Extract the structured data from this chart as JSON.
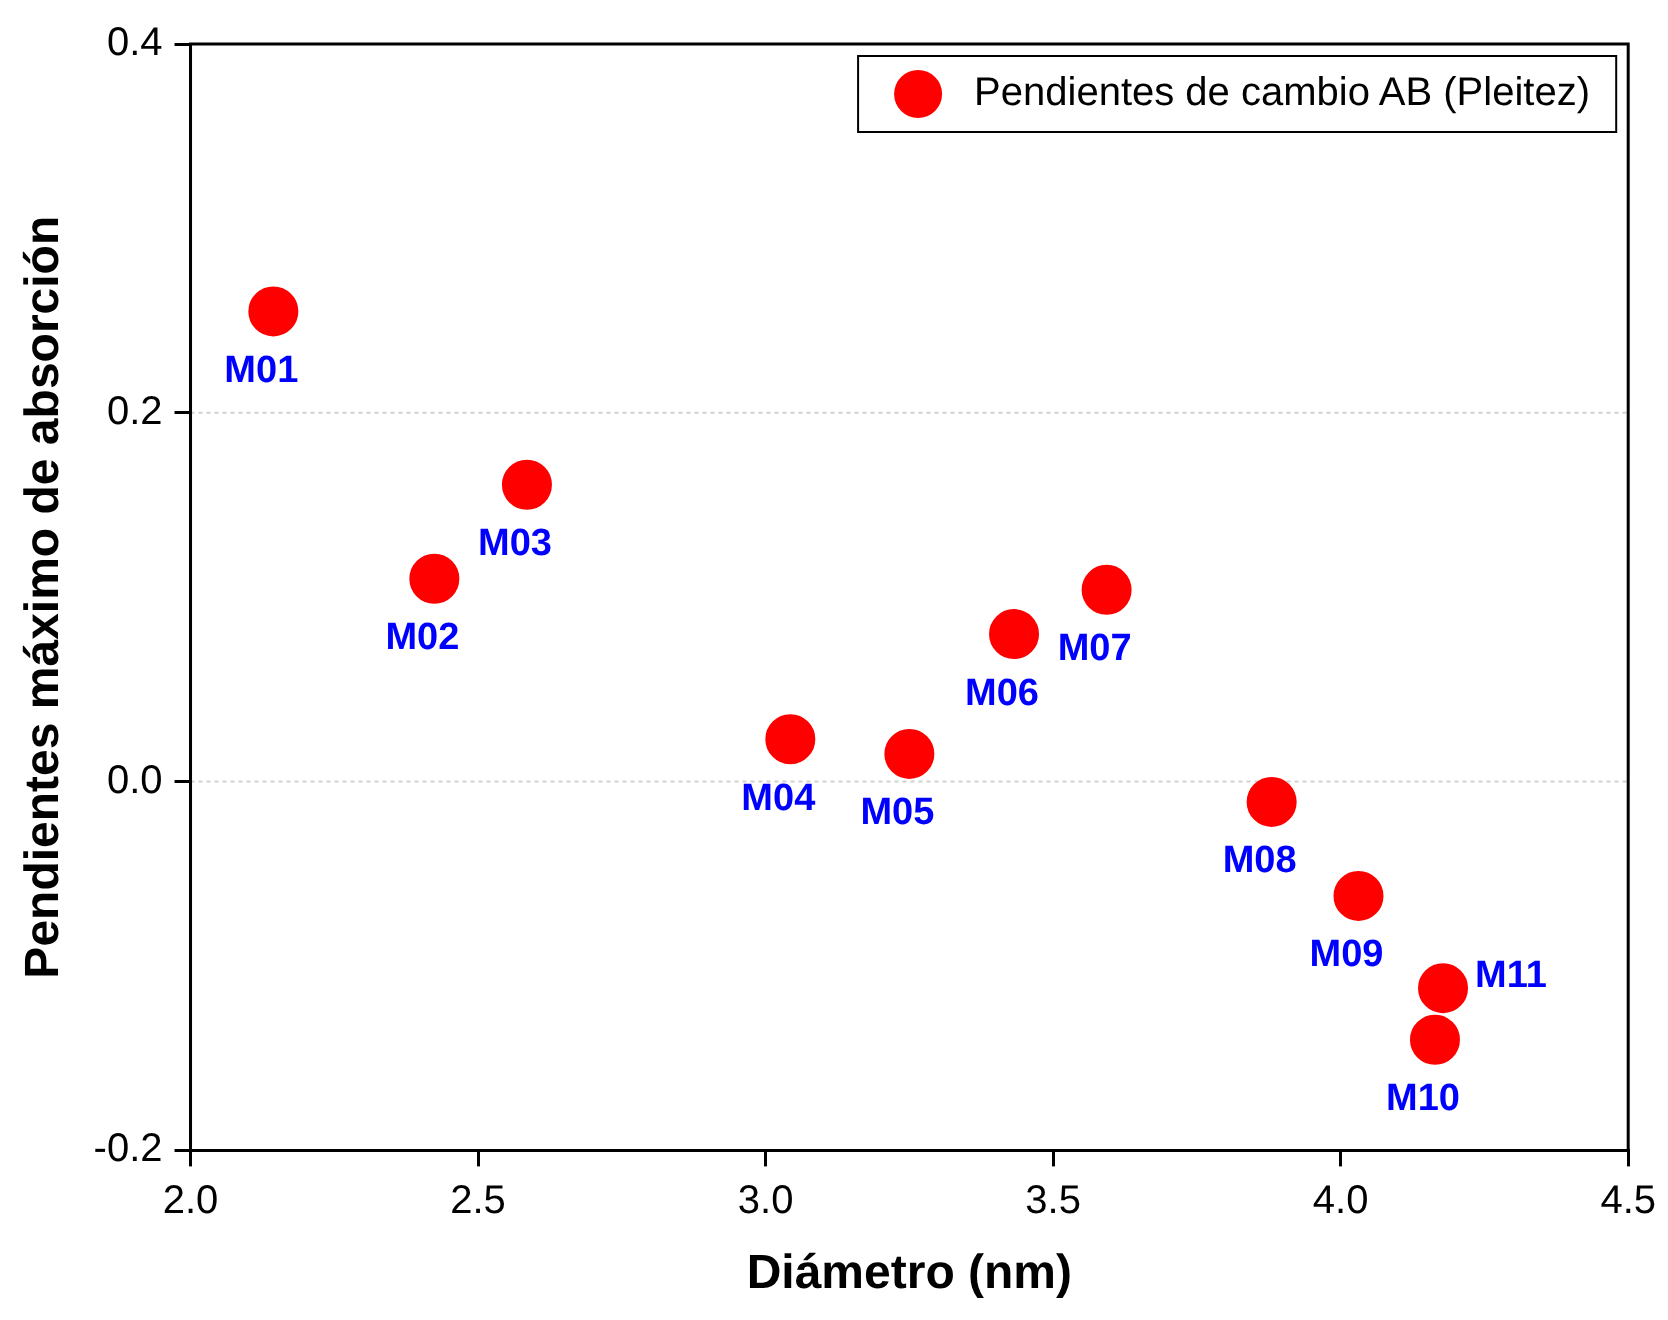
{
  "chart_data": {
    "type": "scatter",
    "xlabel": "Diámetro (nm)",
    "ylabel": "Pendientes máximo de absorción",
    "x": [
      2.144,
      2.424,
      2.585,
      3.043,
      3.25,
      3.432,
      3.593,
      3.88,
      4.031,
      4.164,
      4.178
    ],
    "series": [
      {
        "name": "Pendientes de cambio AB (Pleitez)",
        "color": "#ff0000",
        "values": [
          0.255,
          0.11,
          0.161,
          0.023,
          0.015,
          0.08,
          0.104,
          -0.011,
          -0.062,
          -0.14,
          -0.112
        ]
      }
    ],
    "xlim": [
      2.0,
      4.5
    ],
    "xticks": [
      {
        "value": 2,
        "label": "2.0"
      },
      {
        "value": 2.5,
        "label": "2.5"
      },
      {
        "value": 3,
        "label": "3.0"
      },
      {
        "value": 3.5,
        "label": "3.5"
      },
      {
        "value": 4,
        "label": "4.0"
      },
      {
        "value": 4.5,
        "label": "4.5"
      }
    ],
    "ylim": [
      -0.2,
      0.4
    ],
    "yticks": [
      {
        "value": -0.2,
        "label": "-0.2"
      },
      {
        "value": 0,
        "label": "0.0"
      },
      {
        "value": 0.2,
        "label": "0.2"
      },
      {
        "value": 0.4,
        "label": "0.4"
      }
    ],
    "annotations": [
      {
        "text": "M01",
        "x": 2.144,
        "y": 0.255
      },
      {
        "text": "M02",
        "x": 2.424,
        "y": 0.11
      },
      {
        "text": "M03",
        "x": 2.585,
        "y": 0.161
      },
      {
        "text": "M04",
        "x": 3.043,
        "y": 0.023
      },
      {
        "text": "M05",
        "x": 3.25,
        "y": 0.015
      },
      {
        "text": "M06",
        "x": 3.432,
        "y": 0.08
      },
      {
        "text": "M07",
        "x": 3.593,
        "y": 0.104
      },
      {
        "text": "M08",
        "x": 3.88,
        "y": -0.011
      },
      {
        "text": "M09",
        "x": 4.031,
        "y": -0.062
      },
      {
        "text": "M10",
        "x": 4.164,
        "y": -0.14
      },
      {
        "text": "M11",
        "x": 4.178,
        "y": -0.112
      }
    ],
    "grid": "y",
    "legend": "top right",
    "marker": "circle"
  }
}
